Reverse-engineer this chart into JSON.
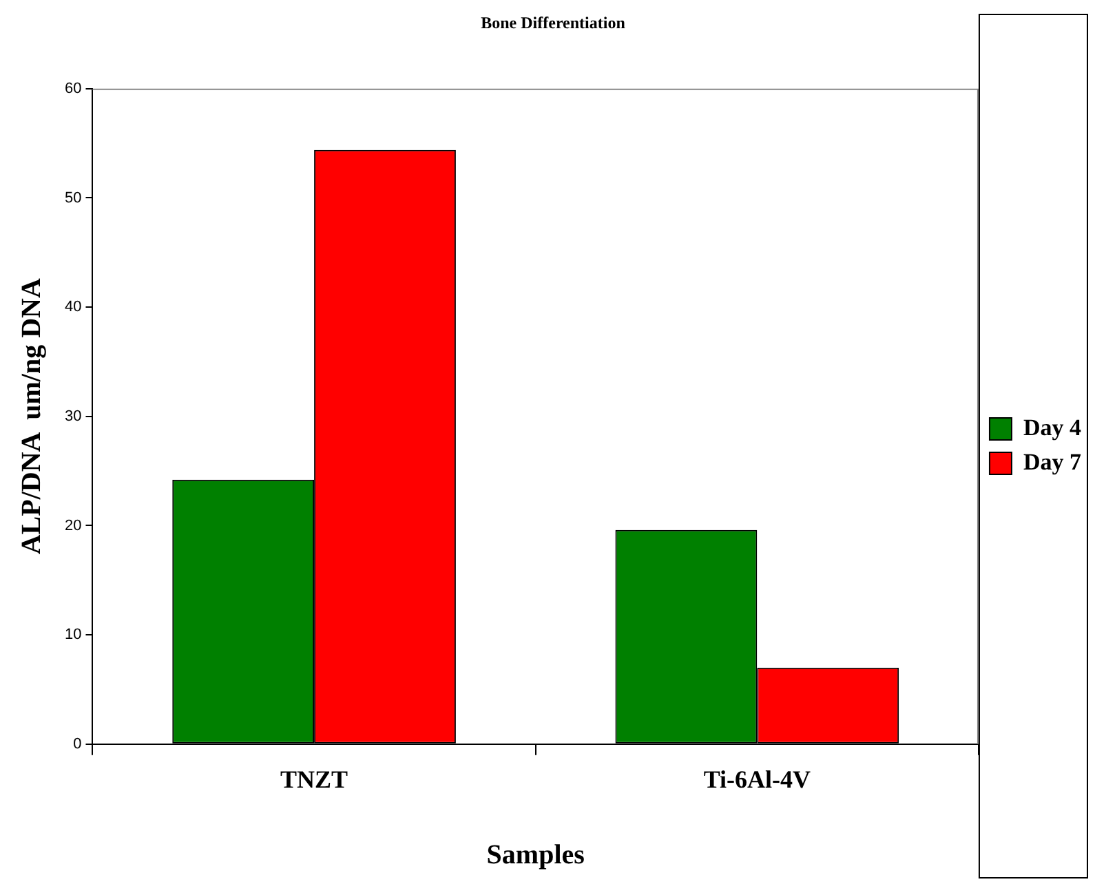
{
  "chart_data": {
    "type": "bar",
    "title": "Bone Differentiation",
    "xlabel": "Samples",
    "ylabel": "ALP/DNA  um/ng DNA",
    "categories": [
      "TNZT",
      "Ti-6Al-4V"
    ],
    "series": [
      {
        "name": "Day 4",
        "color": "#008000",
        "values": [
          24.2,
          19.6
        ]
      },
      {
        "name": "Day 7",
        "color": "#ff0000",
        "values": [
          54.4,
          7.0
        ]
      }
    ],
    "ylim": [
      0,
      60
    ],
    "yticks": [
      0,
      10,
      20,
      30,
      40,
      50,
      60
    ],
    "grid": false,
    "legend": "right"
  }
}
